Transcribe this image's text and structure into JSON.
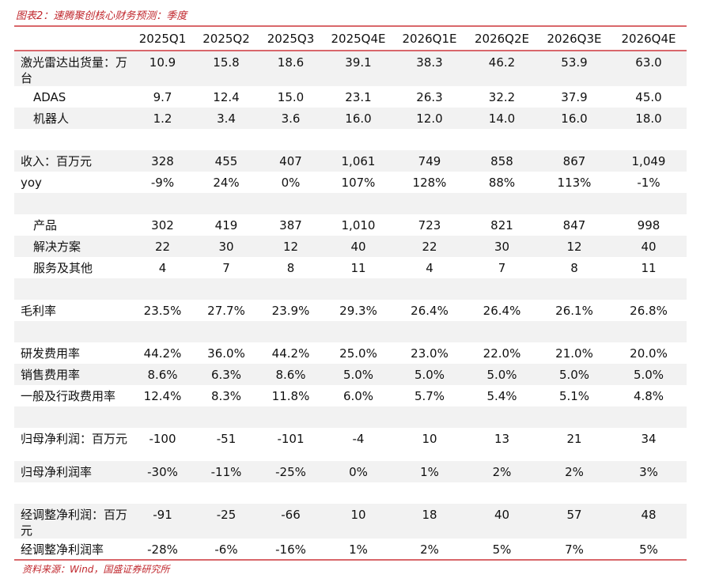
{
  "title": "图表2：速腾聚创核心财务预测：季度",
  "source": "资料来源：Wind，国盛证券研究所",
  "columns": [
    "2025Q1",
    "2025Q2",
    "2025Q3",
    "2025Q4E",
    "2026Q1E",
    "2026Q2E",
    "2026Q3E",
    "2026Q4E"
  ],
  "rows": [
    {
      "label": "激光雷达出货量：万台",
      "values": [
        "10.9",
        "15.8",
        "18.6",
        "39.1",
        "38.3",
        "46.2",
        "53.9",
        "63.0"
      ],
      "h": 42
    },
    {
      "label": "ADAS",
      "indent": true,
      "values": [
        "9.7",
        "12.4",
        "15.0",
        "23.1",
        "26.3",
        "32.2",
        "37.9",
        "45.0"
      ]
    },
    {
      "label": "机器人",
      "indent": true,
      "values": [
        "1.2",
        "3.4",
        "3.6",
        "16.0",
        "12.0",
        "14.0",
        "16.0",
        "18.0"
      ]
    },
    {
      "label": "",
      "values": []
    },
    {
      "label": "收入：百万元",
      "values": [
        "328",
        "455",
        "407",
        "1,061",
        "749",
        "858",
        "867",
        "1,049"
      ]
    },
    {
      "label": "yoy",
      "values": [
        "-9%",
        "24%",
        "0%",
        "107%",
        "128%",
        "88%",
        "113%",
        "-1%"
      ]
    },
    {
      "label": "",
      "values": []
    },
    {
      "label": "产品",
      "indent": true,
      "values": [
        "302",
        "419",
        "387",
        "1,010",
        "723",
        "821",
        "847",
        "998"
      ]
    },
    {
      "label": "解决方案",
      "indent": true,
      "values": [
        "22",
        "30",
        "12",
        "40",
        "22",
        "30",
        "12",
        "40"
      ]
    },
    {
      "label": "服务及其他",
      "indent": true,
      "values": [
        "4",
        "7",
        "8",
        "11",
        "4",
        "7",
        "8",
        "11"
      ]
    },
    {
      "label": "",
      "values": []
    },
    {
      "label": "毛利率",
      "values": [
        "23.5%",
        "27.7%",
        "23.9%",
        "29.3%",
        "26.4%",
        "26.4%",
        "26.1%",
        "26.8%"
      ]
    },
    {
      "label": "",
      "values": []
    },
    {
      "label": "研发费用率",
      "values": [
        "44.2%",
        "36.0%",
        "44.2%",
        "25.0%",
        "23.0%",
        "22.0%",
        "21.0%",
        "20.0%"
      ]
    },
    {
      "label": "销售费用率",
      "values": [
        "8.6%",
        "6.3%",
        "8.6%",
        "5.0%",
        "5.0%",
        "5.0%",
        "5.0%",
        "5.0%"
      ]
    },
    {
      "label": "一般及行政费用率",
      "values": [
        "12.4%",
        "8.3%",
        "11.8%",
        "6.0%",
        "5.7%",
        "5.4%",
        "5.1%",
        "4.8%"
      ]
    },
    {
      "label": "",
      "values": []
    },
    {
      "label": "归母净利润：百万元",
      "values": [
        "-100",
        "-51",
        "-101",
        "-4",
        "10",
        "13",
        "21",
        "34"
      ],
      "h": 42
    },
    {
      "label": "归母净利润率",
      "values": [
        "-30%",
        "-11%",
        "-25%",
        "0%",
        "1%",
        "2%",
        "2%",
        "3%"
      ]
    },
    {
      "label": "",
      "values": []
    },
    {
      "label": "经调整净利润：百万元",
      "values": [
        "-91",
        "-25",
        "-66",
        "10",
        "18",
        "40",
        "57",
        "48"
      ],
      "h": 42
    },
    {
      "label": "经调整净利润率",
      "values": [
        "-28%",
        "-6%",
        "-16%",
        "1%",
        "2%",
        "5%",
        "7%",
        "5%"
      ]
    }
  ]
}
